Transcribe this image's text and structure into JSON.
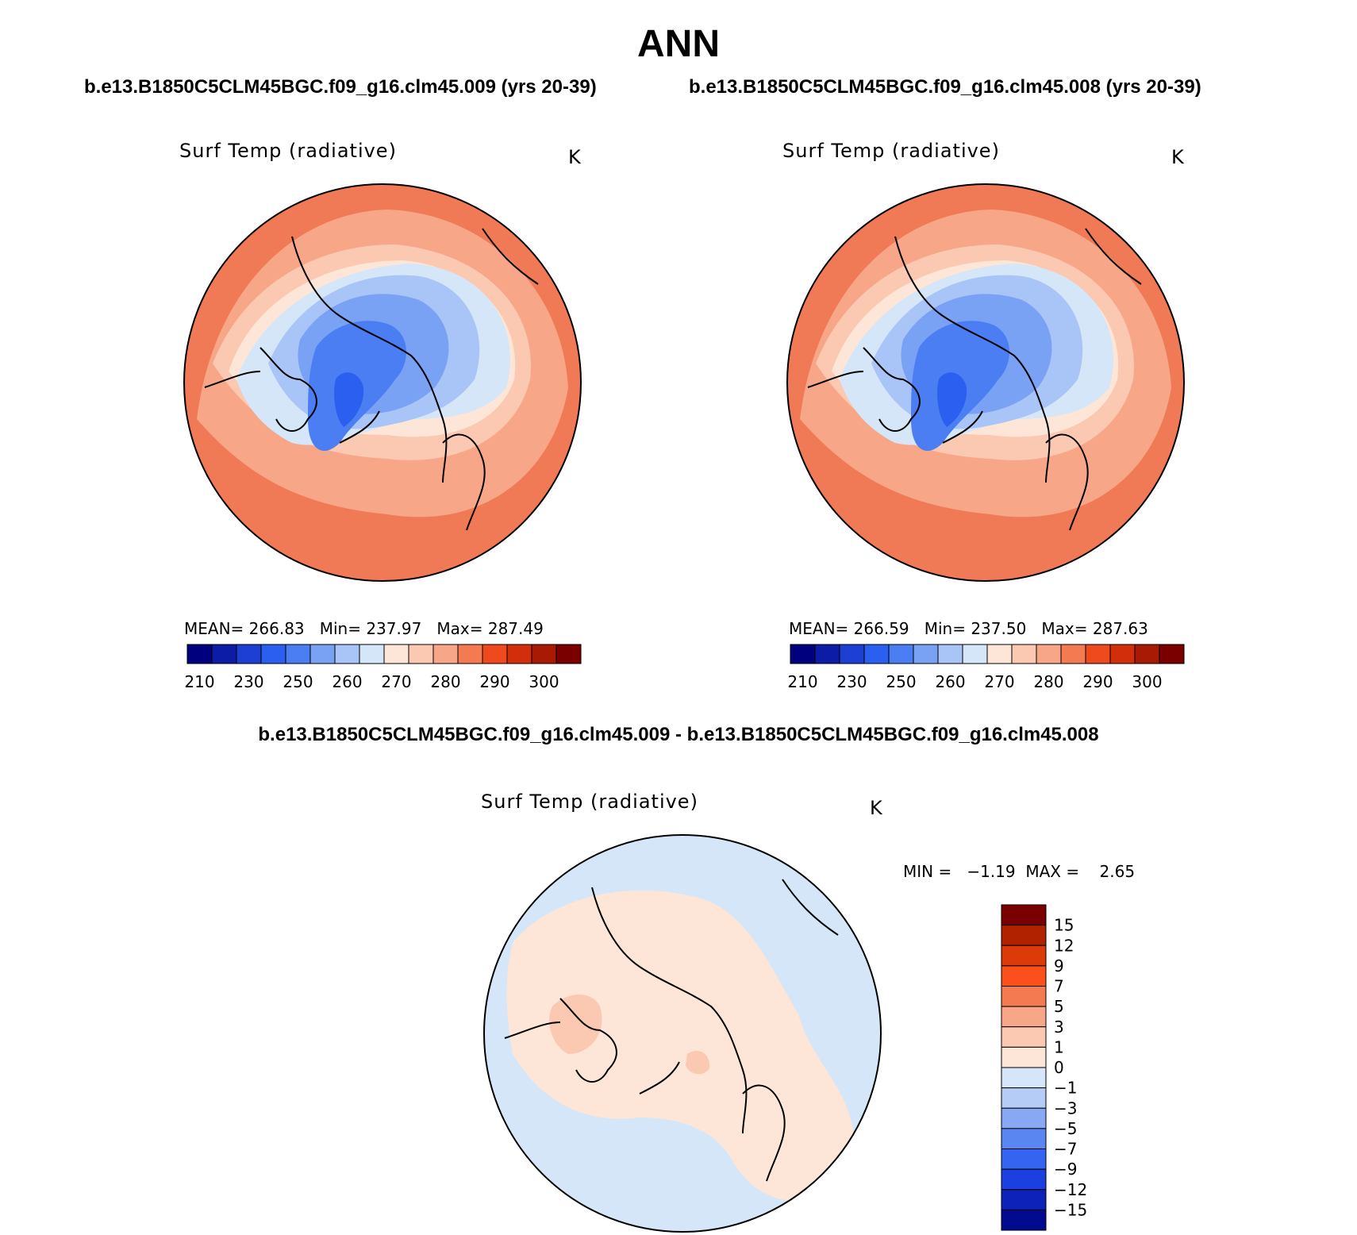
{
  "title": "ANN",
  "case_left_title": "b.e13.B1850C5CLM45BGC.f09_g16.clm45.009 (yrs 20-39)",
  "case_right_title": "b.e13.B1850C5CLM45BGC.f09_g16.clm45.008 (yrs 20-39)",
  "diff_title": "b.e13.B1850C5CLM45BGC.f09_g16.clm45.009 - b.e13.B1850C5CLM45BGC.f09_g16.clm45.008",
  "panels": [
    {
      "variable": "Surf Temp (radiative)",
      "units": "K",
      "mean_label": "MEAN=",
      "mean": "266.83",
      "min_label": "Min=",
      "min": "237.97",
      "max_label": "Max=",
      "max": "287.49"
    },
    {
      "variable": "Surf Temp (radiative)",
      "units": "K",
      "mean_label": "MEAN=",
      "mean": "266.59",
      "min_label": "Min=",
      "min": "237.50",
      "max_label": "Max=",
      "max": "287.63"
    },
    {
      "variable": "Surf Temp (radiative)",
      "units": "K",
      "min_label": "MIN =",
      "min": "−1.19",
      "max_label": "MAX =",
      "max": "2.65"
    }
  ],
  "abs_colorbar": {
    "colors": [
      "#00007f",
      "#0c1ca6",
      "#1e3fd4",
      "#2a5ff0",
      "#4a7ef2",
      "#7aa2f4",
      "#a9c4f6",
      "#d4e6f8",
      "#fde6d8",
      "#fbc8b2",
      "#f8a688",
      "#f47a52",
      "#ee4a1e",
      "#d32e0c",
      "#a81a04",
      "#7a0000"
    ],
    "tick_labels": [
      "210",
      "230",
      "250",
      "260",
      "270",
      "280",
      "290",
      "300"
    ]
  },
  "diff_colorbar": {
    "colors": [
      "#7a0000",
      "#b02200",
      "#dc3a08",
      "#fa501c",
      "#f47a52",
      "#f8a688",
      "#fbc8b2",
      "#fde6d8",
      "#d4e6f8",
      "#b4ccf6",
      "#88a8f4",
      "#5a86f2",
      "#3464f0",
      "#1c40e0",
      "#0c22b8",
      "#020a90"
    ],
    "tick_labels": [
      "15",
      "12",
      "9",
      "7",
      "5",
      "3",
      "1",
      "0",
      "−1",
      "−3",
      "−5",
      "−7",
      "−9",
      "−12",
      "−15"
    ]
  },
  "map_colors": {
    "outer": "#f07a55",
    "warm": "#f8a688",
    "mild": "#fbc8b2",
    "neutral": "#fde6d8",
    "cool": "#d4e6f8",
    "cold": "#a9c4f6",
    "colder": "#7aa2f4",
    "coldest": "#4a7ef2",
    "extreme": "#2a5ff0",
    "diff_pos": "#fde6d8",
    "diff_neg": "#d4e6f8",
    "diff_strong": "#fbc8b2"
  }
}
